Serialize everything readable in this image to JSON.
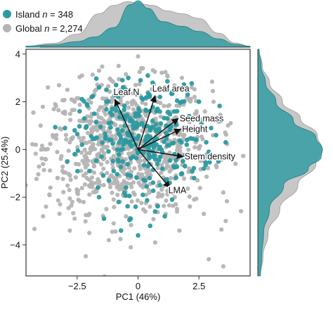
{
  "colors": {
    "island": "#2a9aa0",
    "global": "#b4b4b4",
    "arrow": "#111111",
    "axis": "#333333"
  },
  "legend": {
    "island_label": "Island n = 348",
    "global_label": "Global n = 2,274"
  },
  "chart_data": {
    "type": "scatter",
    "xlabel": "PC1 (46%)",
    "ylabel": "PC2 (25.4%)",
    "xlim": [
      -4.6,
      4.6
    ],
    "ylim": [
      -5.3,
      4.2
    ],
    "xticks": [
      -2.5,
      0,
      2.5
    ],
    "yticks": [
      -4,
      -2,
      0,
      2,
      4
    ],
    "xtick_labels": [
      "−2.5",
      "0",
      "2.5"
    ],
    "ytick_labels": [
      "−4",
      "−2",
      "0",
      "2",
      "4"
    ],
    "grid": false,
    "legend_position": "top-left",
    "series": [
      {
        "name": "Island",
        "n": "348",
        "color_key": "island",
        "center": [
          0.2,
          0.5
        ],
        "spread": [
          1.2,
          1.1
        ],
        "points": [
          [
            -1.9,
            2.2
          ],
          [
            -2.1,
            1.9
          ],
          [
            -1.6,
            2.6
          ],
          [
            -1.3,
            2.0
          ],
          [
            -0.9,
            2.7
          ],
          [
            -0.5,
            2.5
          ],
          [
            0.1,
            2.9
          ],
          [
            0.6,
            2.8
          ],
          [
            0.9,
            2.2
          ],
          [
            1.4,
            2.4
          ],
          [
            1.8,
            2.0
          ],
          [
            2.1,
            1.4
          ],
          [
            2.6,
            1.1
          ],
          [
            3.0,
            0.9
          ],
          [
            3.2,
            0.6
          ],
          [
            2.4,
            0.4
          ],
          [
            1.9,
            0.9
          ],
          [
            1.2,
            1.3
          ],
          [
            0.6,
            1.2
          ],
          [
            0.0,
            1.5
          ],
          [
            -0.6,
            1.3
          ],
          [
            -1.2,
            1.1
          ],
          [
            -2.2,
            1.3
          ],
          [
            -2.6,
            0.8
          ],
          [
            -2.3,
            0.2
          ],
          [
            -1.7,
            0.5
          ],
          [
            -1.1,
            0.4
          ],
          [
            -0.4,
            0.6
          ],
          [
            0.3,
            0.4
          ],
          [
            0.9,
            0.1
          ],
          [
            1.5,
            -0.2
          ],
          [
            2.2,
            -0.3
          ],
          [
            2.9,
            -0.1
          ],
          [
            3.3,
            -0.5
          ],
          [
            2.7,
            -0.8
          ],
          [
            1.8,
            -1.0
          ],
          [
            1.0,
            -0.8
          ],
          [
            0.4,
            -0.7
          ],
          [
            -0.2,
            -0.3
          ],
          [
            -0.8,
            -0.5
          ],
          [
            -1.5,
            -0.3
          ],
          [
            -2.0,
            -0.9
          ],
          [
            -1.2,
            -1.3
          ],
          [
            -0.5,
            -1.6
          ],
          [
            0.2,
            -1.9
          ],
          [
            0.9,
            -1.5
          ],
          [
            1.4,
            -2.1
          ],
          [
            0.7,
            -2.6
          ],
          [
            -0.1,
            -2.4
          ],
          [
            -0.8,
            -2.2
          ],
          [
            -1.6,
            -2.0
          ],
          [
            -1.4,
            -2.9
          ],
          [
            -0.3,
            -2.9
          ],
          [
            0.5,
            -3.2
          ],
          [
            1.1,
            -2.8
          ],
          [
            -0.9,
            1.8
          ],
          [
            0.2,
            2.1
          ],
          [
            0.8,
            1.7
          ],
          [
            1.6,
            1.6
          ],
          [
            -1.8,
            1.5
          ],
          [
            -0.2,
            0.9
          ],
          [
            0.5,
            0.8
          ],
          [
            1.2,
            0.6
          ],
          [
            -0.6,
            0.2
          ],
          [
            0.1,
            -0.1
          ],
          [
            0.6,
            -0.3
          ],
          [
            -1.0,
            -0.9
          ],
          [
            -0.3,
            -1.1
          ],
          [
            0.3,
            -1.3
          ],
          [
            1.3,
            -1.4
          ],
          [
            2.3,
            -1.2
          ],
          [
            2.0,
            0.2
          ],
          [
            2.8,
            0.3
          ],
          [
            -2.6,
            -0.2
          ],
          [
            -2.4,
            1.6
          ],
          [
            -1.3,
            2.5
          ],
          [
            -0.4,
            3.0
          ],
          [
            0.4,
            3.1
          ],
          [
            1.1,
            2.6
          ],
          [
            2.5,
            2.0
          ],
          [
            3.4,
            1.2
          ],
          [
            3.6,
            0.3
          ],
          [
            -3.0,
            0.9
          ],
          [
            -2.9,
            -0.5
          ],
          [
            -0.7,
            -3.4
          ],
          [
            0.0,
            -3.6
          ]
        ]
      },
      {
        "name": "Global",
        "n": "2,274",
        "color_key": "global",
        "center": [
          -0.4,
          0.1
        ],
        "spread": [
          1.7,
          1.35
        ],
        "points": [
          [
            -4.0,
            1.0
          ],
          [
            -3.8,
            -0.4
          ],
          [
            -3.6,
            -1.6
          ],
          [
            -3.4,
            1.9
          ],
          [
            -3.2,
            -2.3
          ],
          [
            -2.9,
            2.5
          ],
          [
            -2.6,
            -2.9
          ],
          [
            -2.3,
            3.1
          ],
          [
            -2.0,
            -3.5
          ],
          [
            -1.6,
            3.3
          ],
          [
            -1.2,
            -3.8
          ],
          [
            -0.8,
            3.5
          ],
          [
            -0.3,
            -4.1
          ],
          [
            0.2,
            3.4
          ],
          [
            0.7,
            -3.9
          ],
          [
            1.2,
            3.1
          ],
          [
            1.7,
            -3.4
          ],
          [
            2.2,
            2.6
          ],
          [
            2.7,
            -2.7
          ],
          [
            3.1,
            2.0
          ],
          [
            3.5,
            -1.8
          ],
          [
            3.8,
            1.1
          ],
          [
            4.0,
            -0.6
          ],
          [
            3.6,
            -3.0
          ],
          [
            -3.9,
            -2.8
          ],
          [
            -4.2,
            0.2
          ],
          [
            2.9,
            -4.6
          ],
          [
            3.5,
            -4.9
          ],
          [
            -2.4,
            1.2
          ],
          [
            -1.9,
            0.8
          ],
          [
            -1.4,
            1.6
          ],
          [
            -2.8,
            0.3
          ],
          [
            -2.2,
            -0.6
          ],
          [
            -1.7,
            -1.4
          ],
          [
            -1.0,
            -2.1
          ],
          [
            -2.5,
            -1.8
          ],
          [
            -3.1,
            -0.9
          ],
          [
            -1.8,
            2.3
          ],
          [
            -1.1,
            2.9
          ],
          [
            -0.7,
            1.9
          ],
          [
            -0.2,
            1.2
          ],
          [
            0.4,
            2.4
          ],
          [
            0.9,
            1.0
          ],
          [
            1.5,
            0.4
          ],
          [
            2.1,
            -0.8
          ],
          [
            2.6,
            0.9
          ],
          [
            1.0,
            -1.9
          ],
          [
            0.3,
            -2.6
          ],
          [
            -0.5,
            -2.8
          ],
          [
            -1.3,
            -2.5
          ],
          [
            -2.0,
            -2.7
          ],
          [
            -2.7,
            -2.2
          ],
          [
            -3.3,
            -1.2
          ],
          [
            -3.5,
            0.6
          ],
          [
            -3.0,
            1.5
          ],
          [
            -2.6,
            2.0
          ],
          [
            -1.5,
            0.2
          ],
          [
            -0.9,
            -0.4
          ],
          [
            -0.4,
            -1.0
          ],
          [
            0.5,
            -0.6
          ],
          [
            1.3,
            -0.3
          ],
          [
            1.9,
            0.6
          ],
          [
            2.4,
            1.6
          ],
          [
            0.8,
            2.0
          ],
          [
            -0.1,
            2.7
          ],
          [
            -1.5,
            -1.0
          ],
          [
            -2.1,
            -1.2
          ],
          [
            -0.6,
            -1.7
          ],
          [
            0.1,
            -1.5
          ],
          [
            1.6,
            -2.6
          ],
          [
            2.3,
            -2.1
          ],
          [
            -3.7,
            2.6
          ],
          [
            -2.8,
            -3.4
          ],
          [
            -1.0,
            -3.1
          ],
          [
            0.0,
            3.9
          ],
          [
            1.8,
            3.0
          ]
        ]
      }
    ],
    "density_x": {
      "island": [
        [
          -4.6,
          0.02
        ],
        [
          -3.5,
          0.05
        ],
        [
          -2.5,
          0.12
        ],
        [
          -1.8,
          0.22
        ],
        [
          -1.0,
          0.42
        ],
        [
          -0.3,
          0.92
        ],
        [
          0.0,
          1.0
        ],
        [
          0.4,
          0.84
        ],
        [
          1.0,
          0.55
        ],
        [
          1.8,
          0.45
        ],
        [
          2.5,
          0.34
        ],
        [
          3.3,
          0.18
        ],
        [
          4.0,
          0.06
        ],
        [
          4.6,
          0.02
        ]
      ],
      "global": [
        [
          -4.6,
          0.02
        ],
        [
          -3.5,
          0.08
        ],
        [
          -2.5,
          0.28
        ],
        [
          -1.6,
          0.72
        ],
        [
          -1.0,
          0.9
        ],
        [
          -0.4,
          0.98
        ],
        [
          0.0,
          0.94
        ],
        [
          0.6,
          0.9
        ],
        [
          1.2,
          0.78
        ],
        [
          1.8,
          0.72
        ],
        [
          2.5,
          0.62
        ],
        [
          3.3,
          0.3
        ],
        [
          4.0,
          0.09
        ],
        [
          4.6,
          0.02
        ]
      ]
    },
    "density_y": {
      "island": [
        [
          -5.3,
          0.04
        ],
        [
          -4.5,
          0.06
        ],
        [
          -3.5,
          0.09
        ],
        [
          -2.5,
          0.18
        ],
        [
          -1.5,
          0.4
        ],
        [
          -0.8,
          0.78
        ],
        [
          -0.3,
          0.98
        ],
        [
          0.0,
          1.0
        ],
        [
          0.5,
          0.9
        ],
        [
          1.2,
          0.55
        ],
        [
          2.0,
          0.28
        ],
        [
          2.8,
          0.12
        ],
        [
          3.5,
          0.05
        ],
        [
          4.2,
          0.02
        ]
      ],
      "global": [
        [
          -5.3,
          0.04
        ],
        [
          -4.5,
          0.08
        ],
        [
          -3.5,
          0.16
        ],
        [
          -2.5,
          0.34
        ],
        [
          -1.5,
          0.62
        ],
        [
          -0.6,
          0.9
        ],
        [
          0.0,
          0.99
        ],
        [
          0.6,
          0.92
        ],
        [
          1.3,
          0.66
        ],
        [
          2.0,
          0.38
        ],
        [
          2.8,
          0.18
        ],
        [
          3.5,
          0.07
        ],
        [
          4.2,
          0.02
        ]
      ]
    },
    "loadings": [
      {
        "label": "Leaf N",
        "x": -0.95,
        "y": 2.1
      },
      {
        "label": "Leaf area",
        "x": 0.7,
        "y": 2.25
      },
      {
        "label": "Seed mass",
        "x": 1.65,
        "y": 1.3
      },
      {
        "label": "Height",
        "x": 1.75,
        "y": 0.85
      },
      {
        "label": "Stem density",
        "x": 1.85,
        "y": -0.3
      },
      {
        "label": "LMA",
        "x": 1.3,
        "y": -1.6
      }
    ]
  }
}
